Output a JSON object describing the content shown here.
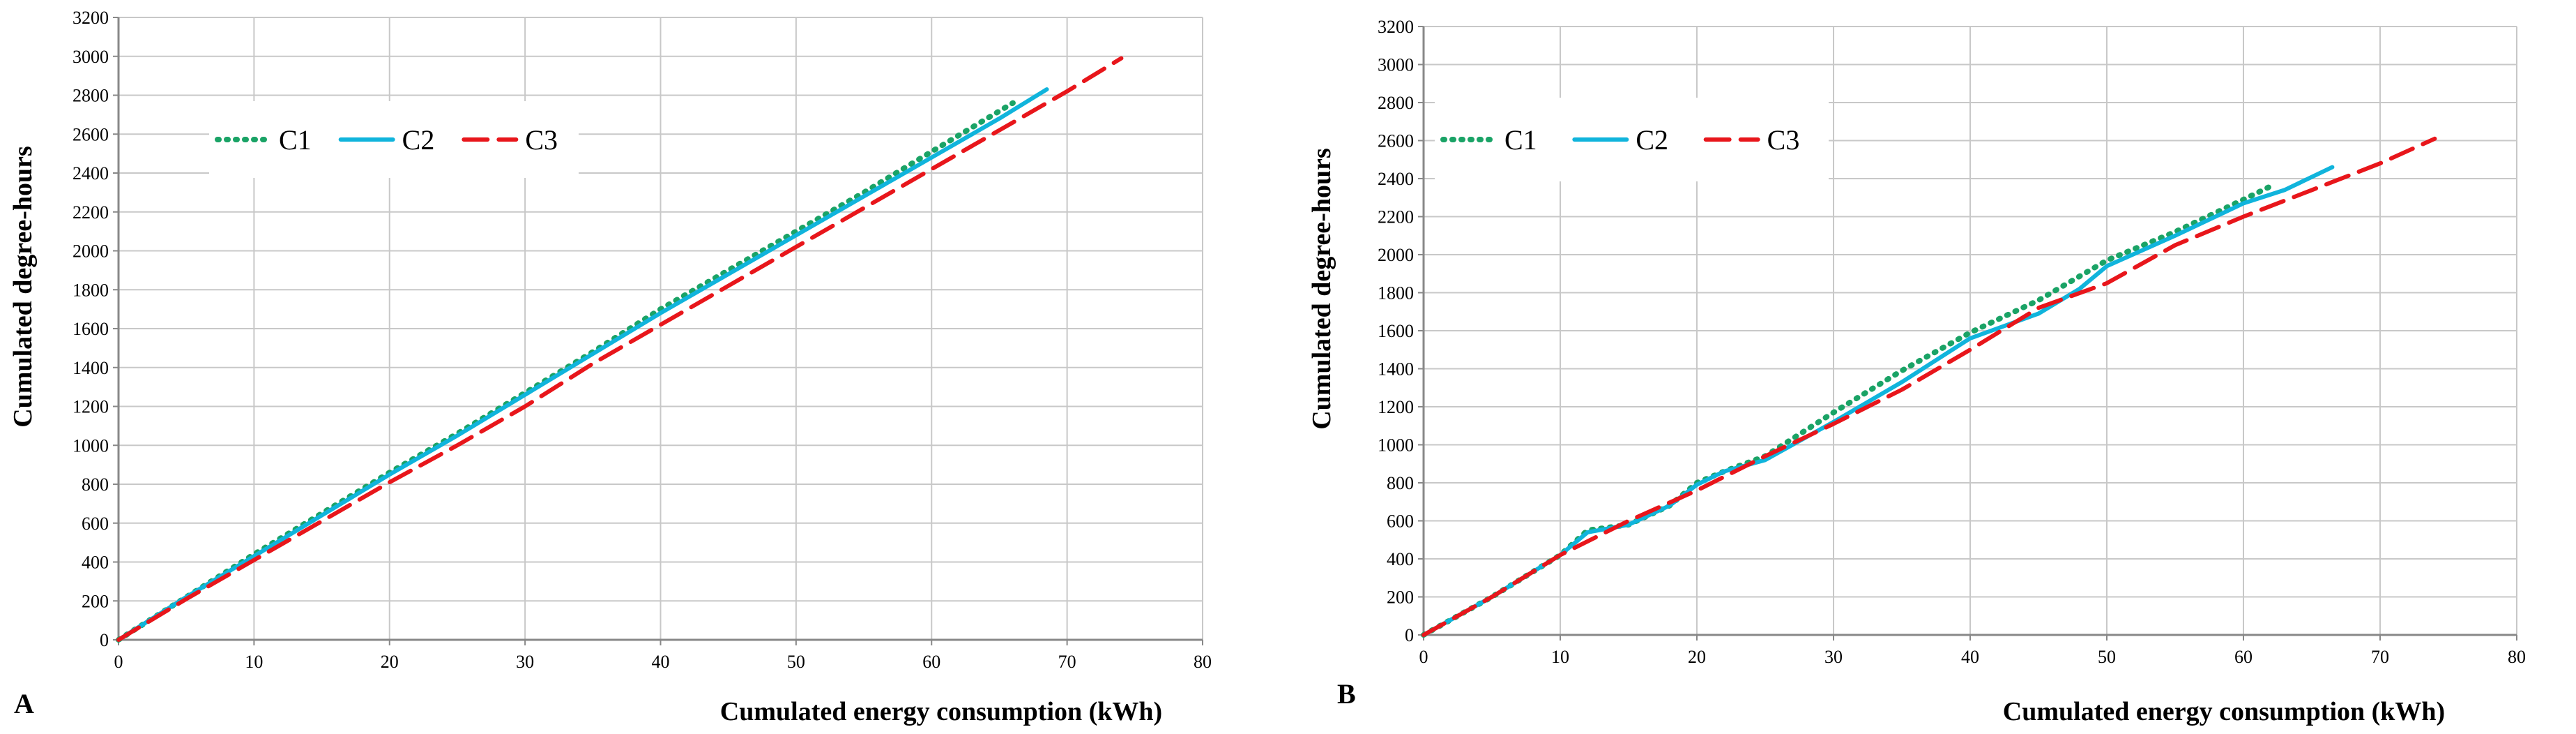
{
  "colors": {
    "C1": "#1aa366",
    "C2": "#10b4dc",
    "C3": "#e8161b",
    "grid": "#c8c8c8",
    "axis": "#888888"
  },
  "chart_data": [
    {
      "type": "line",
      "panel_label": "A",
      "xlabel": "Cumulated energy consumption  (kWh)",
      "ylabel": "Cumulated degree-hours",
      "xlim": [
        0,
        80
      ],
      "ylim": [
        0,
        3200
      ],
      "xticks": [
        0,
        10,
        20,
        30,
        40,
        50,
        60,
        70,
        80
      ],
      "yticks": [
        0,
        200,
        400,
        600,
        800,
        1000,
        1200,
        1400,
        1600,
        1800,
        2000,
        2200,
        2400,
        2600,
        2800,
        3000,
        3200
      ],
      "grid": true,
      "legend_position": "top-left",
      "series": [
        {
          "name": "C1",
          "style": "dotted",
          "x": [
            0,
            5,
            10,
            15,
            20,
            25,
            30,
            35,
            40,
            45,
            50,
            55,
            60,
            66
          ],
          "y": [
            0,
            220,
            440,
            650,
            860,
            1060,
            1270,
            1480,
            1700,
            1900,
            2100,
            2300,
            2510,
            2760
          ]
        },
        {
          "name": "C2",
          "style": "solid",
          "x": [
            0,
            5,
            10,
            15,
            20,
            25,
            30,
            35,
            40,
            45,
            50,
            55,
            60,
            65,
            68.5
          ],
          "y": [
            0,
            220,
            430,
            640,
            850,
            1050,
            1260,
            1470,
            1680,
            1880,
            2080,
            2280,
            2480,
            2680,
            2830
          ]
        },
        {
          "name": "C3",
          "style": "dashed",
          "x": [
            0,
            5,
            10,
            15,
            20,
            25,
            30,
            35,
            40,
            45,
            50,
            55,
            60,
            65,
            70,
            74
          ],
          "y": [
            0,
            210,
            410,
            610,
            810,
            1000,
            1200,
            1420,
            1620,
            1820,
            2020,
            2220,
            2420,
            2620,
            2820,
            2990
          ]
        }
      ]
    },
    {
      "type": "line",
      "panel_label": "B",
      "xlabel": "Cumulated energy consumption  (kWh)",
      "ylabel": "Cumulated degree-hours",
      "xlim": [
        0,
        80
      ],
      "ylim": [
        0,
        3200
      ],
      "xticks": [
        0,
        10,
        20,
        30,
        40,
        50,
        60,
        70,
        80
      ],
      "yticks": [
        0,
        200,
        400,
        600,
        800,
        1000,
        1200,
        1400,
        1600,
        1800,
        2000,
        2200,
        2400,
        2600,
        2800,
        3000,
        3200
      ],
      "grid": true,
      "legend_position": "top-left",
      "series": [
        {
          "name": "C1",
          "style": "dotted",
          "x": [
            0,
            5,
            10,
            12,
            15,
            18,
            20,
            22,
            25,
            30,
            35,
            40,
            45,
            50,
            55,
            60,
            62
          ],
          "y": [
            0,
            200,
            420,
            550,
            580,
            680,
            800,
            860,
            940,
            1170,
            1390,
            1590,
            1760,
            1970,
            2120,
            2290,
            2360
          ]
        },
        {
          "name": "C2",
          "style": "solid",
          "x": [
            0,
            5,
            10,
            12,
            15,
            18,
            20,
            22,
            25,
            30,
            35,
            40,
            45,
            48,
            50,
            55,
            60,
            63,
            66.5
          ],
          "y": [
            0,
            200,
            420,
            540,
            580,
            680,
            790,
            860,
            920,
            1120,
            1330,
            1560,
            1690,
            1820,
            1940,
            2100,
            2270,
            2340,
            2460
          ]
        },
        {
          "name": "C3",
          "style": "dashed",
          "x": [
            0,
            5,
            10,
            15,
            20,
            25,
            30,
            35,
            40,
            45,
            50,
            55,
            60,
            65,
            70,
            74
          ],
          "y": [
            0,
            200,
            420,
            600,
            760,
            940,
            1110,
            1290,
            1500,
            1720,
            1850,
            2050,
            2200,
            2340,
            2480,
            2610
          ]
        }
      ]
    }
  ]
}
